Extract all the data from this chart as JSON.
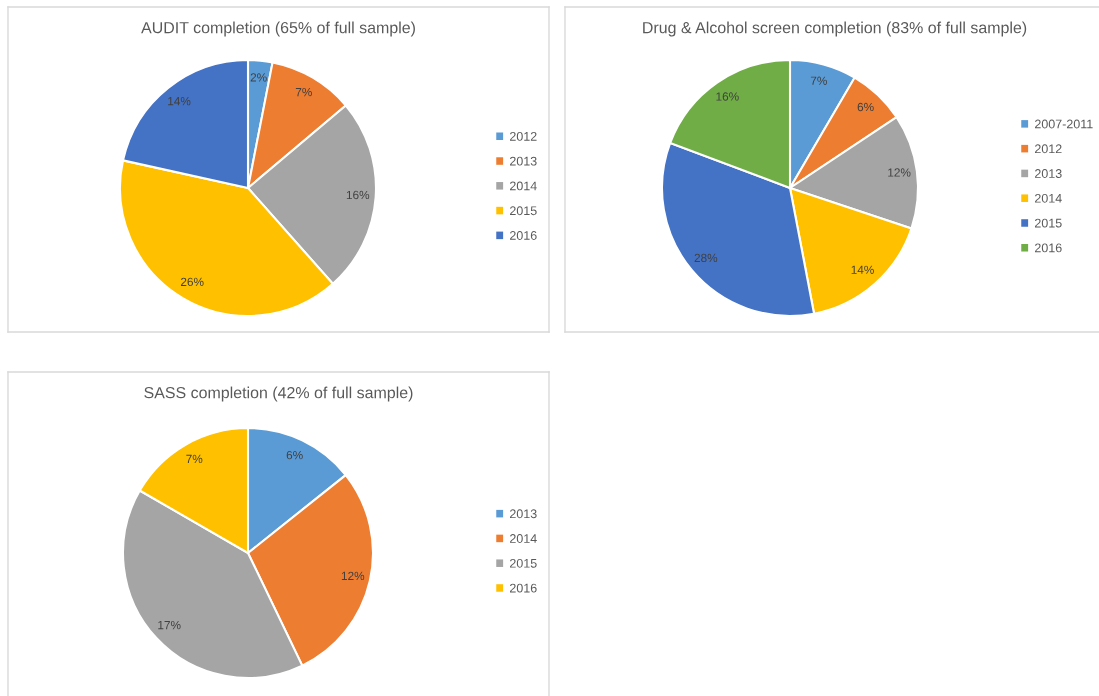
{
  "chart_data": [
    {
      "type": "pie",
      "title": "AUDIT completion (65% of full sample)",
      "categories": [
        "2012",
        "2013",
        "2014",
        "2015",
        "2016"
      ],
      "values": [
        2,
        7,
        16,
        26,
        14
      ],
      "colors": [
        "#5b9bd5",
        "#ed7d31",
        "#a5a5a5",
        "#ffc000",
        "#4472c4"
      ],
      "value_labels": [
        "2%",
        "7%",
        "16%",
        "26%",
        "14%"
      ],
      "legend": "right"
    },
    {
      "type": "pie",
      "title": "Drug & Alcohol screen completion (83% of full sample)",
      "categories": [
        "2007-2011",
        "2012",
        "2013",
        "2014",
        "2015",
        "2016"
      ],
      "values": [
        7,
        6,
        12,
        14,
        28,
        16
      ],
      "colors": [
        "#5b9bd5",
        "#ed7d31",
        "#a5a5a5",
        "#ffc000",
        "#4472c4",
        "#70ad47"
      ],
      "value_labels": [
        "7%",
        "6%",
        "12%",
        "14%",
        "28%",
        "16%"
      ],
      "legend": "right"
    },
    {
      "type": "pie",
      "title": "SASS completion (42% of full sample)",
      "categories": [
        "2013",
        "2014",
        "2015",
        "2016"
      ],
      "values": [
        6,
        12,
        17,
        7
      ],
      "colors": [
        "#5b9bd5",
        "#ed7d31",
        "#a5a5a5",
        "#ffc000"
      ],
      "value_labels": [
        "6%",
        "12%",
        "17%",
        "7%"
      ],
      "legend": "right"
    }
  ]
}
